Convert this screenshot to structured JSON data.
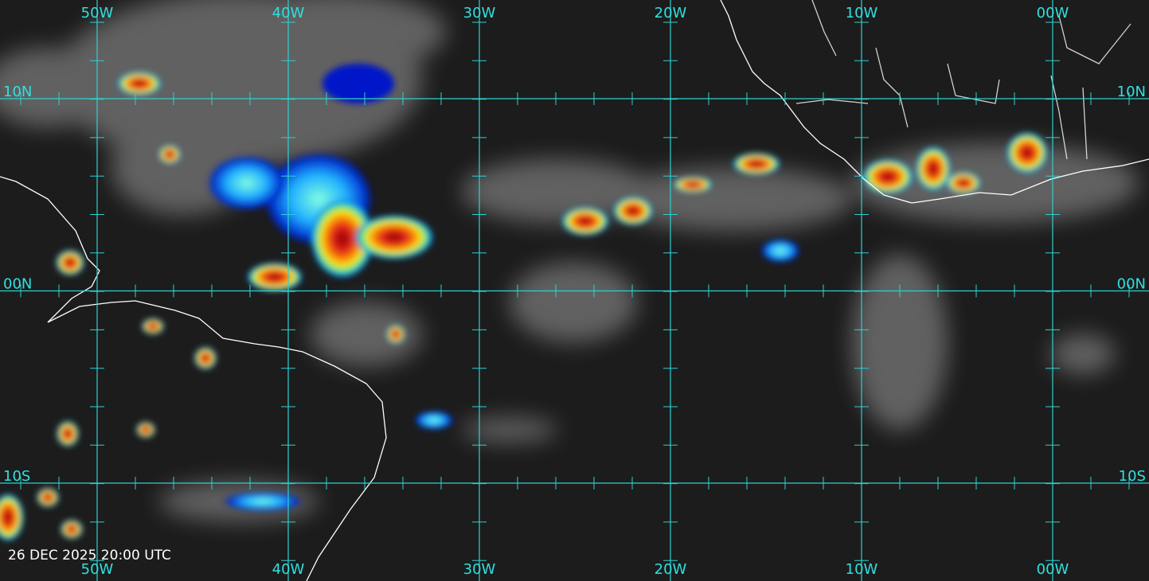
{
  "labels": {
    "longitudes": [
      "50W",
      "40W",
      "30W",
      "20W",
      "10W",
      "00W"
    ],
    "latitudes": [
      "10N",
      "00N",
      "10S"
    ]
  },
  "timestamp": "26 DEC 2025 20:00 UTC"
}
